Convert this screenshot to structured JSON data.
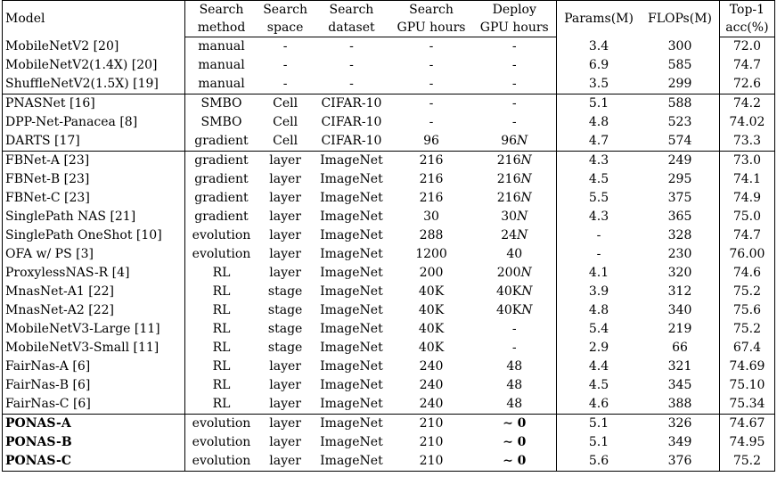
{
  "headers": {
    "model": "Model",
    "search_method": [
      "Search",
      "method"
    ],
    "search_space": [
      "Search",
      "space"
    ],
    "search_dataset": [
      "Search",
      "dataset"
    ],
    "search_gpu": [
      "Search",
      "GPU hours"
    ],
    "deploy_gpu": [
      "Deploy",
      "GPU hours"
    ],
    "params": "Params(M)",
    "flops": "FLOPs(M)",
    "top1": [
      "Top-1",
      "acc(%)"
    ]
  },
  "groups": [
    [
      {
        "model": "MobileNetV2 [20]",
        "method": "manual",
        "space": "-",
        "dataset": "-",
        "search_gpu": "-",
        "deploy_gpu": "-",
        "params": "3.4",
        "flops": "300",
        "top1": "72.0"
      },
      {
        "model": "MobileNetV2(1.4X) [20]",
        "method": "manual",
        "space": "-",
        "dataset": "-",
        "search_gpu": "-",
        "deploy_gpu": "-",
        "params": "6.9",
        "flops": "585",
        "top1": "74.7"
      },
      {
        "model": "ShuffleNetV2(1.5X) [19]",
        "method": "manual",
        "space": "-",
        "dataset": "-",
        "search_gpu": "-",
        "deploy_gpu": "-",
        "params": "3.5",
        "flops": "299",
        "top1": "72.6"
      }
    ],
    [
      {
        "model": "PNASNet [16]",
        "method": "SMBO",
        "space": "Cell",
        "dataset": "CIFAR-10",
        "search_gpu": "-",
        "deploy_gpu": "-",
        "params": "5.1",
        "flops": "588",
        "top1": "74.2"
      },
      {
        "model": "DPP-Net-Panacea [8]",
        "method": "SMBO",
        "space": "Cell",
        "dataset": "CIFAR-10",
        "search_gpu": "-",
        "deploy_gpu": "-",
        "params": "4.8",
        "flops": "523",
        "top1": "74.02"
      },
      {
        "model": "DARTS [17]",
        "method": "gradient",
        "space": "Cell",
        "dataset": "CIFAR-10",
        "search_gpu": "96",
        "deploy_gpu": "96N",
        "params": "4.7",
        "flops": "574",
        "top1": "73.3"
      }
    ],
    [
      {
        "model": "FBNet-A [23]",
        "method": "gradient",
        "space": "layer",
        "dataset": "ImageNet",
        "search_gpu": "216",
        "deploy_gpu": "216N",
        "params": "4.3",
        "flops": "249",
        "top1": "73.0"
      },
      {
        "model": "FBNet-B [23]",
        "method": "gradient",
        "space": "layer",
        "dataset": "ImageNet",
        "search_gpu": "216",
        "deploy_gpu": "216N",
        "params": "4.5",
        "flops": "295",
        "top1": "74.1"
      },
      {
        "model": "FBNet-C [23]",
        "method": "gradient",
        "space": "layer",
        "dataset": "ImageNet",
        "search_gpu": "216",
        "deploy_gpu": "216N",
        "params": "5.5",
        "flops": "375",
        "top1": "74.9"
      },
      {
        "model": "SinglePath NAS [21]",
        "method": "gradient",
        "space": "layer",
        "dataset": "ImageNet",
        "search_gpu": "30",
        "deploy_gpu": "30N",
        "params": "4.3",
        "flops": "365",
        "top1": "75.0"
      },
      {
        "model": "SinglePath OneShot [10]",
        "method": "evolution",
        "space": "layer",
        "dataset": "ImageNet",
        "search_gpu": "288",
        "deploy_gpu": "24N",
        "params": "-",
        "flops": "328",
        "top1": "74.7"
      },
      {
        "model": "OFA w/ PS [3]",
        "method": "evolution",
        "space": "layer",
        "dataset": "ImageNet",
        "search_gpu": "1200",
        "deploy_gpu": "40",
        "params": "-",
        "flops": "230",
        "top1": "76.00"
      },
      {
        "model": "ProxylessNAS-R [4]",
        "method": "RL",
        "space": "layer",
        "dataset": "ImageNet",
        "search_gpu": "200",
        "deploy_gpu": "200N",
        "params": "4.1",
        "flops": "320",
        "top1": "74.6"
      },
      {
        "model": "MnasNet-A1 [22]",
        "method": "RL",
        "space": "stage",
        "dataset": "ImageNet",
        "search_gpu": "40K",
        "deploy_gpu": "40KN",
        "params": "3.9",
        "flops": "312",
        "top1": "75.2"
      },
      {
        "model": "MnasNet-A2 [22]",
        "method": "RL",
        "space": "stage",
        "dataset": "ImageNet",
        "search_gpu": "40K",
        "deploy_gpu": "40KN",
        "params": "4.8",
        "flops": "340",
        "top1": "75.6"
      },
      {
        "model": "MobileNetV3-Large [11]",
        "method": "RL",
        "space": "stage",
        "dataset": "ImageNet",
        "search_gpu": "40K",
        "deploy_gpu": "-",
        "params": "5.4",
        "flops": "219",
        "top1": "75.2"
      },
      {
        "model": "MobileNetV3-Small [11]",
        "method": "RL",
        "space": "stage",
        "dataset": "ImageNet",
        "search_gpu": "40K",
        "deploy_gpu": "-",
        "params": "2.9",
        "flops": "66",
        "top1": "67.4"
      },
      {
        "model": "FairNas-A [6]",
        "method": "RL",
        "space": "layer",
        "dataset": "ImageNet",
        "search_gpu": "240",
        "deploy_gpu": "48",
        "params": "4.4",
        "flops": "321",
        "top1": "74.69"
      },
      {
        "model": "FairNas-B [6]",
        "method": "RL",
        "space": "layer",
        "dataset": "ImageNet",
        "search_gpu": "240",
        "deploy_gpu": "48",
        "params": "4.5",
        "flops": "345",
        "top1": "75.10"
      },
      {
        "model": "FairNas-C [6]",
        "method": "RL",
        "space": "layer",
        "dataset": "ImageNet",
        "search_gpu": "240",
        "deploy_gpu": "48",
        "params": "4.6",
        "flops": "388",
        "top1": "75.34"
      }
    ],
    [
      {
        "model": "PONAS-A",
        "method": "evolution",
        "space": "layer",
        "dataset": "ImageNet",
        "search_gpu": "210",
        "deploy_gpu": "∼ 0",
        "params": "5.1",
        "flops": "326",
        "top1": "74.67",
        "bold": true
      },
      {
        "model": "PONAS-B",
        "method": "evolution",
        "space": "layer",
        "dataset": "ImageNet",
        "search_gpu": "210",
        "deploy_gpu": "∼ 0",
        "params": "5.1",
        "flops": "349",
        "top1": "74.95",
        "bold": true
      },
      {
        "model": "PONAS-C",
        "method": "evolution",
        "space": "layer",
        "dataset": "ImageNet",
        "search_gpu": "210",
        "deploy_gpu": "∼ 0",
        "params": "5.6",
        "flops": "376",
        "top1": "75.2",
        "bold": true
      }
    ]
  ]
}
